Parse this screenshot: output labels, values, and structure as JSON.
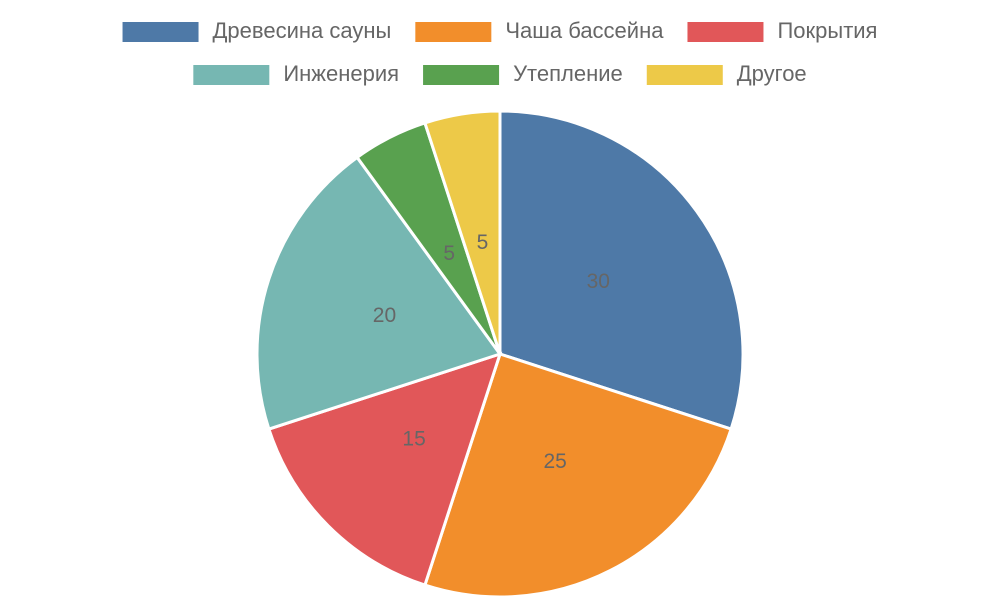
{
  "chart_data": {
    "type": "pie",
    "categories": [
      "Древесина сауны",
      "Чаша бассейна",
      "Покрытия",
      "Инженерия",
      "Утепление",
      "Другое"
    ],
    "values": [
      30,
      25,
      15,
      20,
      5,
      5
    ],
    "colors": [
      "#4e79a7",
      "#f28e2b",
      "#e15759",
      "#76b7b2",
      "#59a14f",
      "#edc948"
    ]
  }
}
